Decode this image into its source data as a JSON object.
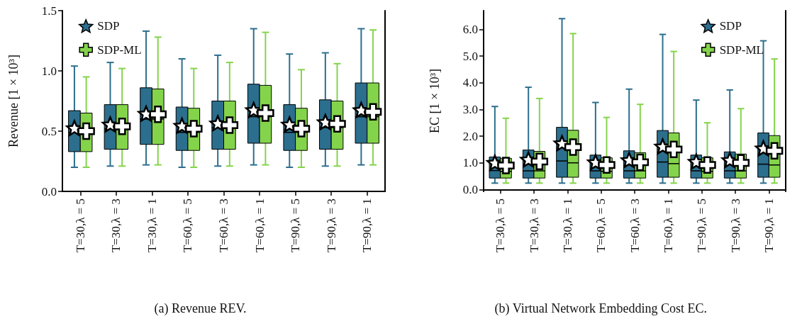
{
  "chart_data": [
    {
      "type": "box",
      "ylabel": "Revenue [1 × 10³]",
      "categories": [
        "T=30,λ = 5",
        "T=30,λ = 3",
        "T=30,λ = 1",
        "T=60,λ = 5",
        "T=60,λ = 3",
        "T=60,λ = 1",
        "T=90,λ = 5",
        "T=90,λ = 3",
        "T=90,λ = 1"
      ],
      "ylim": [
        0,
        1.5
      ],
      "yticks": [
        {
          "value": 0,
          "label": "0.0"
        },
        {
          "value": 0.5,
          "label": "0.5"
        },
        {
          "value": 1,
          "label": "1.0"
        },
        {
          "value": 1.5,
          "label": "1.5"
        }
      ],
      "legend": "top left",
      "annotations": [
        "(a) Revenue REV."
      ],
      "series": [
        {
          "name": "SDP",
          "color": "#2c6e8d",
          "marker": "star",
          "boxes": [
            {
              "low": 0.2,
              "q1": 0.33,
              "median": 0.49,
              "q3": 0.67,
              "high": 1.04,
              "mean": 0.52
            },
            {
              "low": 0.21,
              "q1": 0.35,
              "median": 0.52,
              "q3": 0.72,
              "high": 1.07,
              "mean": 0.55
            },
            {
              "low": 0.22,
              "q1": 0.39,
              "median": 0.6,
              "q3": 0.86,
              "high": 1.33,
              "mean": 0.64
            },
            {
              "low": 0.2,
              "q1": 0.34,
              "median": 0.49,
              "q3": 0.7,
              "high": 1.1,
              "mean": 0.54
            },
            {
              "low": 0.21,
              "q1": 0.35,
              "median": 0.53,
              "q3": 0.75,
              "high": 1.13,
              "mean": 0.56
            },
            {
              "low": 0.22,
              "q1": 0.4,
              "median": 0.62,
              "q3": 0.89,
              "high": 1.35,
              "mean": 0.67
            },
            {
              "low": 0.2,
              "q1": 0.34,
              "median": 0.49,
              "q3": 0.72,
              "high": 1.14,
              "mean": 0.55
            },
            {
              "low": 0.21,
              "q1": 0.35,
              "median": 0.53,
              "q3": 0.76,
              "high": 1.15,
              "mean": 0.57
            },
            {
              "low": 0.22,
              "q1": 0.4,
              "median": 0.62,
              "q3": 0.9,
              "high": 1.35,
              "mean": 0.67
            }
          ]
        },
        {
          "name": "SDP-ML",
          "color": "#84d44b",
          "marker": "cross",
          "boxes": [
            {
              "low": 0.2,
              "q1": 0.33,
              "median": 0.48,
              "q3": 0.65,
              "high": 0.95,
              "mean": 0.5
            },
            {
              "low": 0.21,
              "q1": 0.35,
              "median": 0.52,
              "q3": 0.72,
              "high": 1.02,
              "mean": 0.54
            },
            {
              "low": 0.22,
              "q1": 0.39,
              "median": 0.6,
              "q3": 0.85,
              "high": 1.28,
              "mean": 0.64
            },
            {
              "low": 0.2,
              "q1": 0.34,
              "median": 0.49,
              "q3": 0.69,
              "high": 1.02,
              "mean": 0.52
            },
            {
              "low": 0.21,
              "q1": 0.35,
              "median": 0.53,
              "q3": 0.75,
              "high": 1.07,
              "mean": 0.55
            },
            {
              "low": 0.22,
              "q1": 0.4,
              "median": 0.62,
              "q3": 0.88,
              "high": 1.32,
              "mean": 0.65
            },
            {
              "low": 0.2,
              "q1": 0.34,
              "median": 0.49,
              "q3": 0.69,
              "high": 1.01,
              "mean": 0.52
            },
            {
              "low": 0.21,
              "q1": 0.35,
              "median": 0.53,
              "q3": 0.75,
              "high": 1.06,
              "mean": 0.56
            },
            {
              "low": 0.22,
              "q1": 0.4,
              "median": 0.62,
              "q3": 0.9,
              "high": 1.34,
              "mean": 0.66
            }
          ]
        }
      ]
    },
    {
      "type": "box",
      "ylabel": "EC [1 × 10³]",
      "categories": [
        "T=30,λ = 5",
        "T=30,λ = 3",
        "T=30,λ = 1",
        "T=60,λ = 5",
        "T=60,λ = 3",
        "T=60,λ = 1",
        "T=90,λ = 5",
        "T=90,λ = 3",
        "T=90,λ = 1"
      ],
      "ylim": [
        -0.07,
        6.7
      ],
      "yticks": [
        {
          "value": 0,
          "label": "0.0"
        },
        {
          "value": 1,
          "label": "1.0"
        },
        {
          "value": 2,
          "label": "2.0"
        },
        {
          "value": 3,
          "label": "3.0"
        },
        {
          "value": 4,
          "label": "4.0"
        },
        {
          "value": 5,
          "label": "5.0"
        },
        {
          "value": 6,
          "label": "6.0"
        }
      ],
      "legend": "top right",
      "annotations": [
        "(b) Virtual Network Embedding Cost EC."
      ],
      "series": [
        {
          "name": "SDP",
          "color": "#2c6e8d",
          "marker": "star",
          "boxes": [
            {
              "low": 0.24,
              "q1": 0.43,
              "median": 0.71,
              "q3": 1.22,
              "high": 3.11,
              "mean": 0.98
            },
            {
              "low": 0.24,
              "q1": 0.43,
              "median": 0.7,
              "q3": 1.48,
              "high": 3.83,
              "mean": 1.1
            },
            {
              "low": 0.24,
              "q1": 0.46,
              "median": 1.07,
              "q3": 2.33,
              "high": 6.4,
              "mean": 1.71
            },
            {
              "low": 0.24,
              "q1": 0.43,
              "median": 0.7,
              "q3": 1.29,
              "high": 3.26,
              "mean": 1.0
            },
            {
              "low": 0.24,
              "q1": 0.43,
              "median": 0.7,
              "q3": 1.45,
              "high": 3.76,
              "mean": 1.08
            },
            {
              "low": 0.24,
              "q1": 0.46,
              "median": 1.03,
              "q3": 2.21,
              "high": 5.81,
              "mean": 1.59
            },
            {
              "low": 0.24,
              "q1": 0.43,
              "median": 0.7,
              "q3": 1.29,
              "high": 3.35,
              "mean": 1.02
            },
            {
              "low": 0.24,
              "q1": 0.43,
              "median": 0.7,
              "q3": 1.41,
              "high": 3.73,
              "mean": 1.08
            },
            {
              "low": 0.24,
              "q1": 0.46,
              "median": 0.95,
              "q3": 2.12,
              "high": 5.57,
              "mean": 1.52
            }
          ]
        },
        {
          "name": "SDP-ML",
          "color": "#84d44b",
          "marker": "cross",
          "boxes": [
            {
              "low": 0.24,
              "q1": 0.43,
              "median": 0.68,
              "q3": 1.17,
              "high": 2.67,
              "mean": 0.9
            },
            {
              "low": 0.24,
              "q1": 0.43,
              "median": 0.7,
              "q3": 1.43,
              "high": 3.41,
              "mean": 1.05
            },
            {
              "low": 0.24,
              "q1": 0.46,
              "median": 1.0,
              "q3": 2.22,
              "high": 5.84,
              "mean": 1.59
            },
            {
              "low": 0.24,
              "q1": 0.43,
              "median": 0.68,
              "q3": 1.19,
              "high": 2.7,
              "mean": 0.92
            },
            {
              "low": 0.24,
              "q1": 0.43,
              "median": 0.7,
              "q3": 1.38,
              "high": 3.19,
              "mean": 1.02
            },
            {
              "low": 0.24,
              "q1": 0.46,
              "median": 0.97,
              "q3": 2.12,
              "high": 5.17,
              "mean": 1.5
            },
            {
              "low": 0.24,
              "q1": 0.43,
              "median": 0.68,
              "q3": 1.19,
              "high": 2.5,
              "mean": 0.92
            },
            {
              "low": 0.24,
              "q1": 0.43,
              "median": 0.7,
              "q3": 1.33,
              "high": 3.03,
              "mean": 1.0
            },
            {
              "low": 0.24,
              "q1": 0.46,
              "median": 0.92,
              "q3": 2.02,
              "high": 4.89,
              "mean": 1.45
            }
          ]
        }
      ]
    }
  ]
}
